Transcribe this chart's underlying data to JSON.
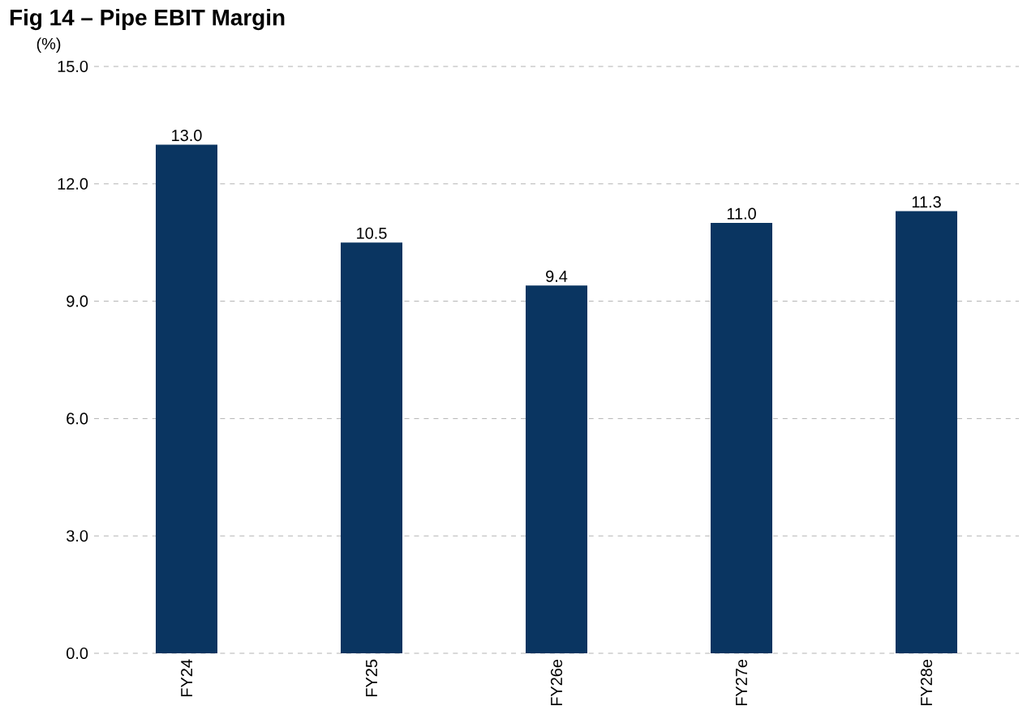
{
  "chart_data": {
    "type": "bar",
    "title": "Fig 14 – Pipe EBIT Margin",
    "ylabel": "(%)",
    "categories": [
      "FY24",
      "FY25",
      "FY26e",
      "FY27e",
      "FY28e"
    ],
    "values": [
      13.0,
      10.5,
      9.4,
      11.0,
      11.3
    ],
    "value_labels": [
      "13.0",
      "10.5",
      "9.4",
      "11.0",
      "11.3"
    ],
    "color": "#0a3561",
    "ylim": [
      0,
      15
    ],
    "yticks": [
      {
        "value": 0,
        "label": "0.0"
      },
      {
        "value": 3,
        "label": "3.0"
      },
      {
        "value": 6,
        "label": "6.0"
      },
      {
        "value": 9,
        "label": "9.0"
      },
      {
        "value": 12,
        "label": "12.0"
      },
      {
        "value": 15,
        "label": "15.0"
      }
    ],
    "grid": "y"
  }
}
